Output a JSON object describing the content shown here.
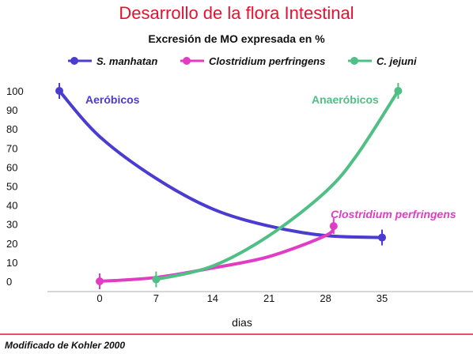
{
  "chart_data": {
    "type": "line",
    "title": "Desarrollo de la flora Intestinal",
    "subtitle": "Excresión de MO expresada en %",
    "xlabel": "dias",
    "ylabel": "",
    "source": "Modificado de Kohler 2000",
    "xlim": [
      -5,
      41
    ],
    "ylim": [
      0,
      100
    ],
    "x_ticks": [
      0,
      7,
      14,
      21,
      28,
      35
    ],
    "y_ticks": [
      0,
      10,
      20,
      30,
      40,
      50,
      60,
      70,
      80,
      90,
      100
    ],
    "grid": false,
    "legend_position": "top",
    "series": [
      {
        "name": "S. manhatan",
        "color": "#4a3bd1",
        "x": [
          -5,
          0,
          7,
          14,
          21,
          28,
          35
        ],
        "y": [
          100,
          76,
          54,
          38,
          29,
          24,
          23
        ]
      },
      {
        "name": "Clostridium perfringens",
        "color": "#e23bc4",
        "x": [
          0,
          7,
          14,
          21,
          28,
          29
        ],
        "y": [
          0,
          2,
          7,
          13,
          24,
          29
        ]
      },
      {
        "name": "C. jejuni",
        "color": "#4fbf85",
        "x": [
          7,
          14,
          21,
          28,
          32,
          37
        ],
        "y": [
          1,
          8,
          24,
          47,
          67,
          100
        ]
      }
    ],
    "annotations": [
      {
        "text": "Aeróbicos",
        "color": "#4a3bd1"
      },
      {
        "text": "Anaeróbicos",
        "color": "#4fbf85"
      },
      {
        "text": "Clostridium perfringens",
        "color": "#e23bc4"
      }
    ]
  }
}
